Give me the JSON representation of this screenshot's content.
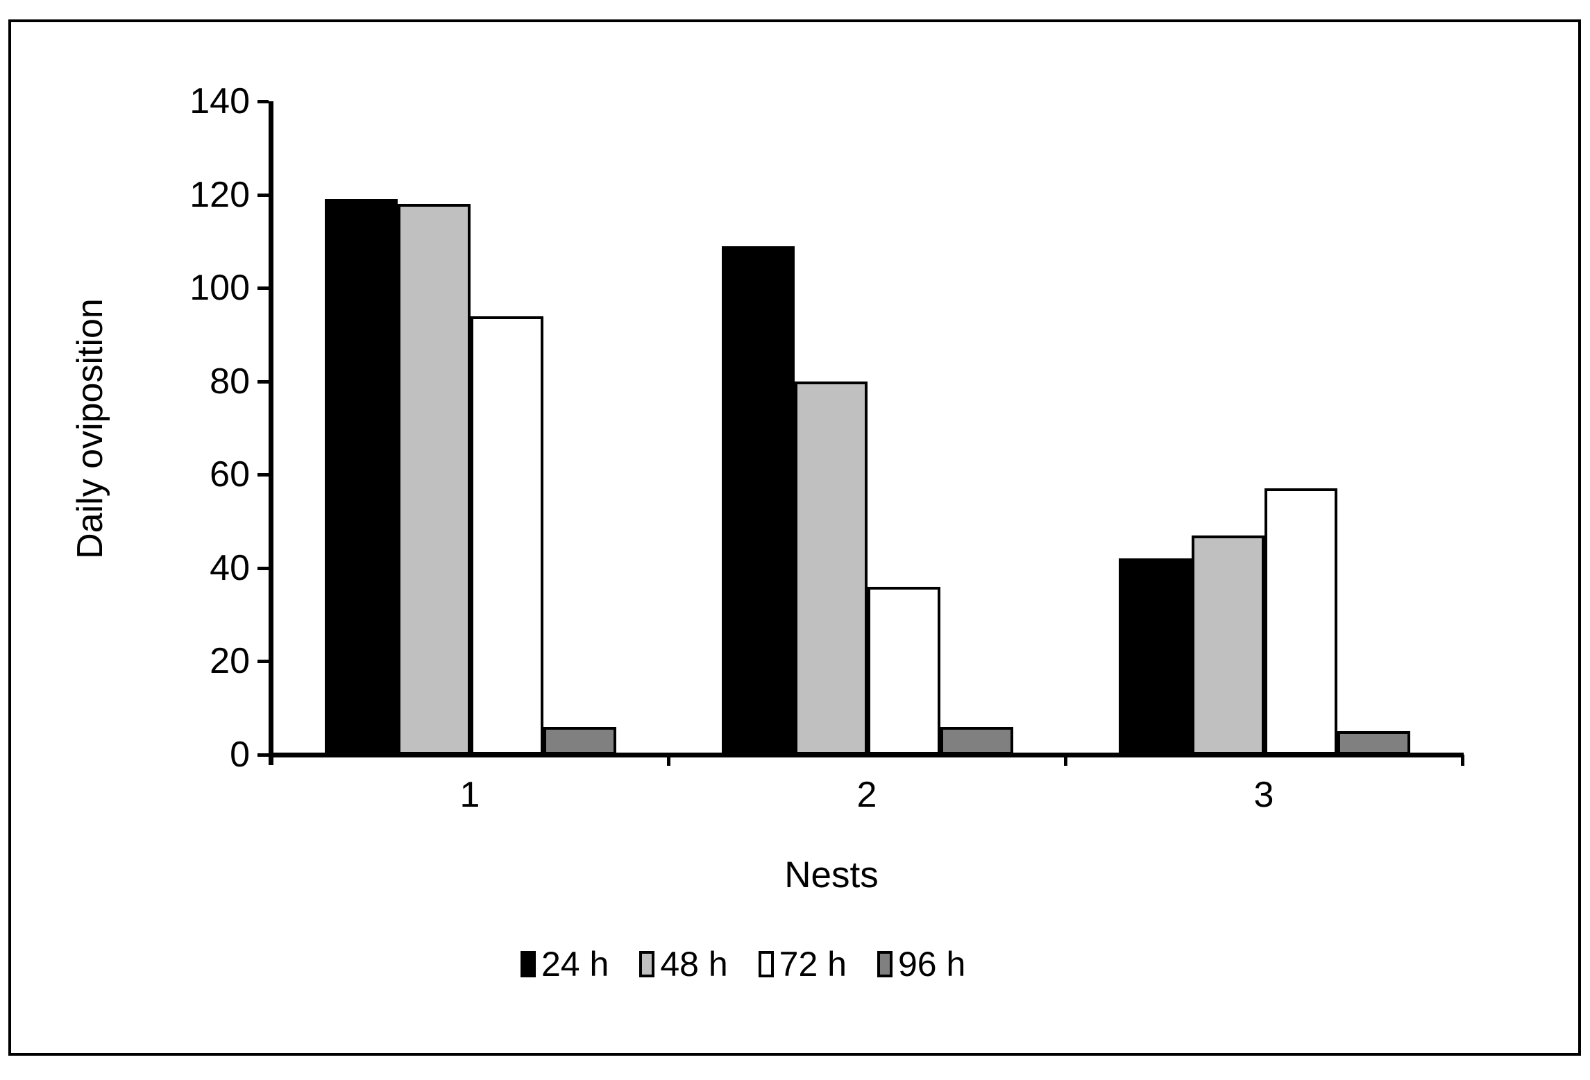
{
  "figure": {
    "background": "#ffffff",
    "border_color": "#000000"
  },
  "chart_data": {
    "type": "bar",
    "title": "",
    "xlabel": "Nests",
    "ylabel": "Daily oviposition",
    "categories": [
      "1",
      "2",
      "3"
    ],
    "series": [
      {
        "name": "24 h",
        "color": "#000000",
        "values": [
          119,
          109,
          42
        ]
      },
      {
        "name": "48 h",
        "color": "#c0c0c0",
        "values": [
          118,
          80,
          47
        ]
      },
      {
        "name": "72 h",
        "color": "#ffffff",
        "values": [
          94,
          36,
          57
        ]
      },
      {
        "name": "96 h",
        "color": "#808080",
        "values": [
          6,
          6,
          5
        ]
      }
    ],
    "ylim": [
      0,
      140
    ],
    "y_tick_step": 20,
    "y_tick_labels": [
      "0",
      "20",
      "40",
      "60",
      "80",
      "100",
      "120",
      "140"
    ],
    "x_tick_labels": [
      "1",
      "2",
      "3"
    ],
    "grid": false,
    "legend_position": "bottom",
    "bar_border_color": "#000000",
    "axis_color": "#000000"
  }
}
